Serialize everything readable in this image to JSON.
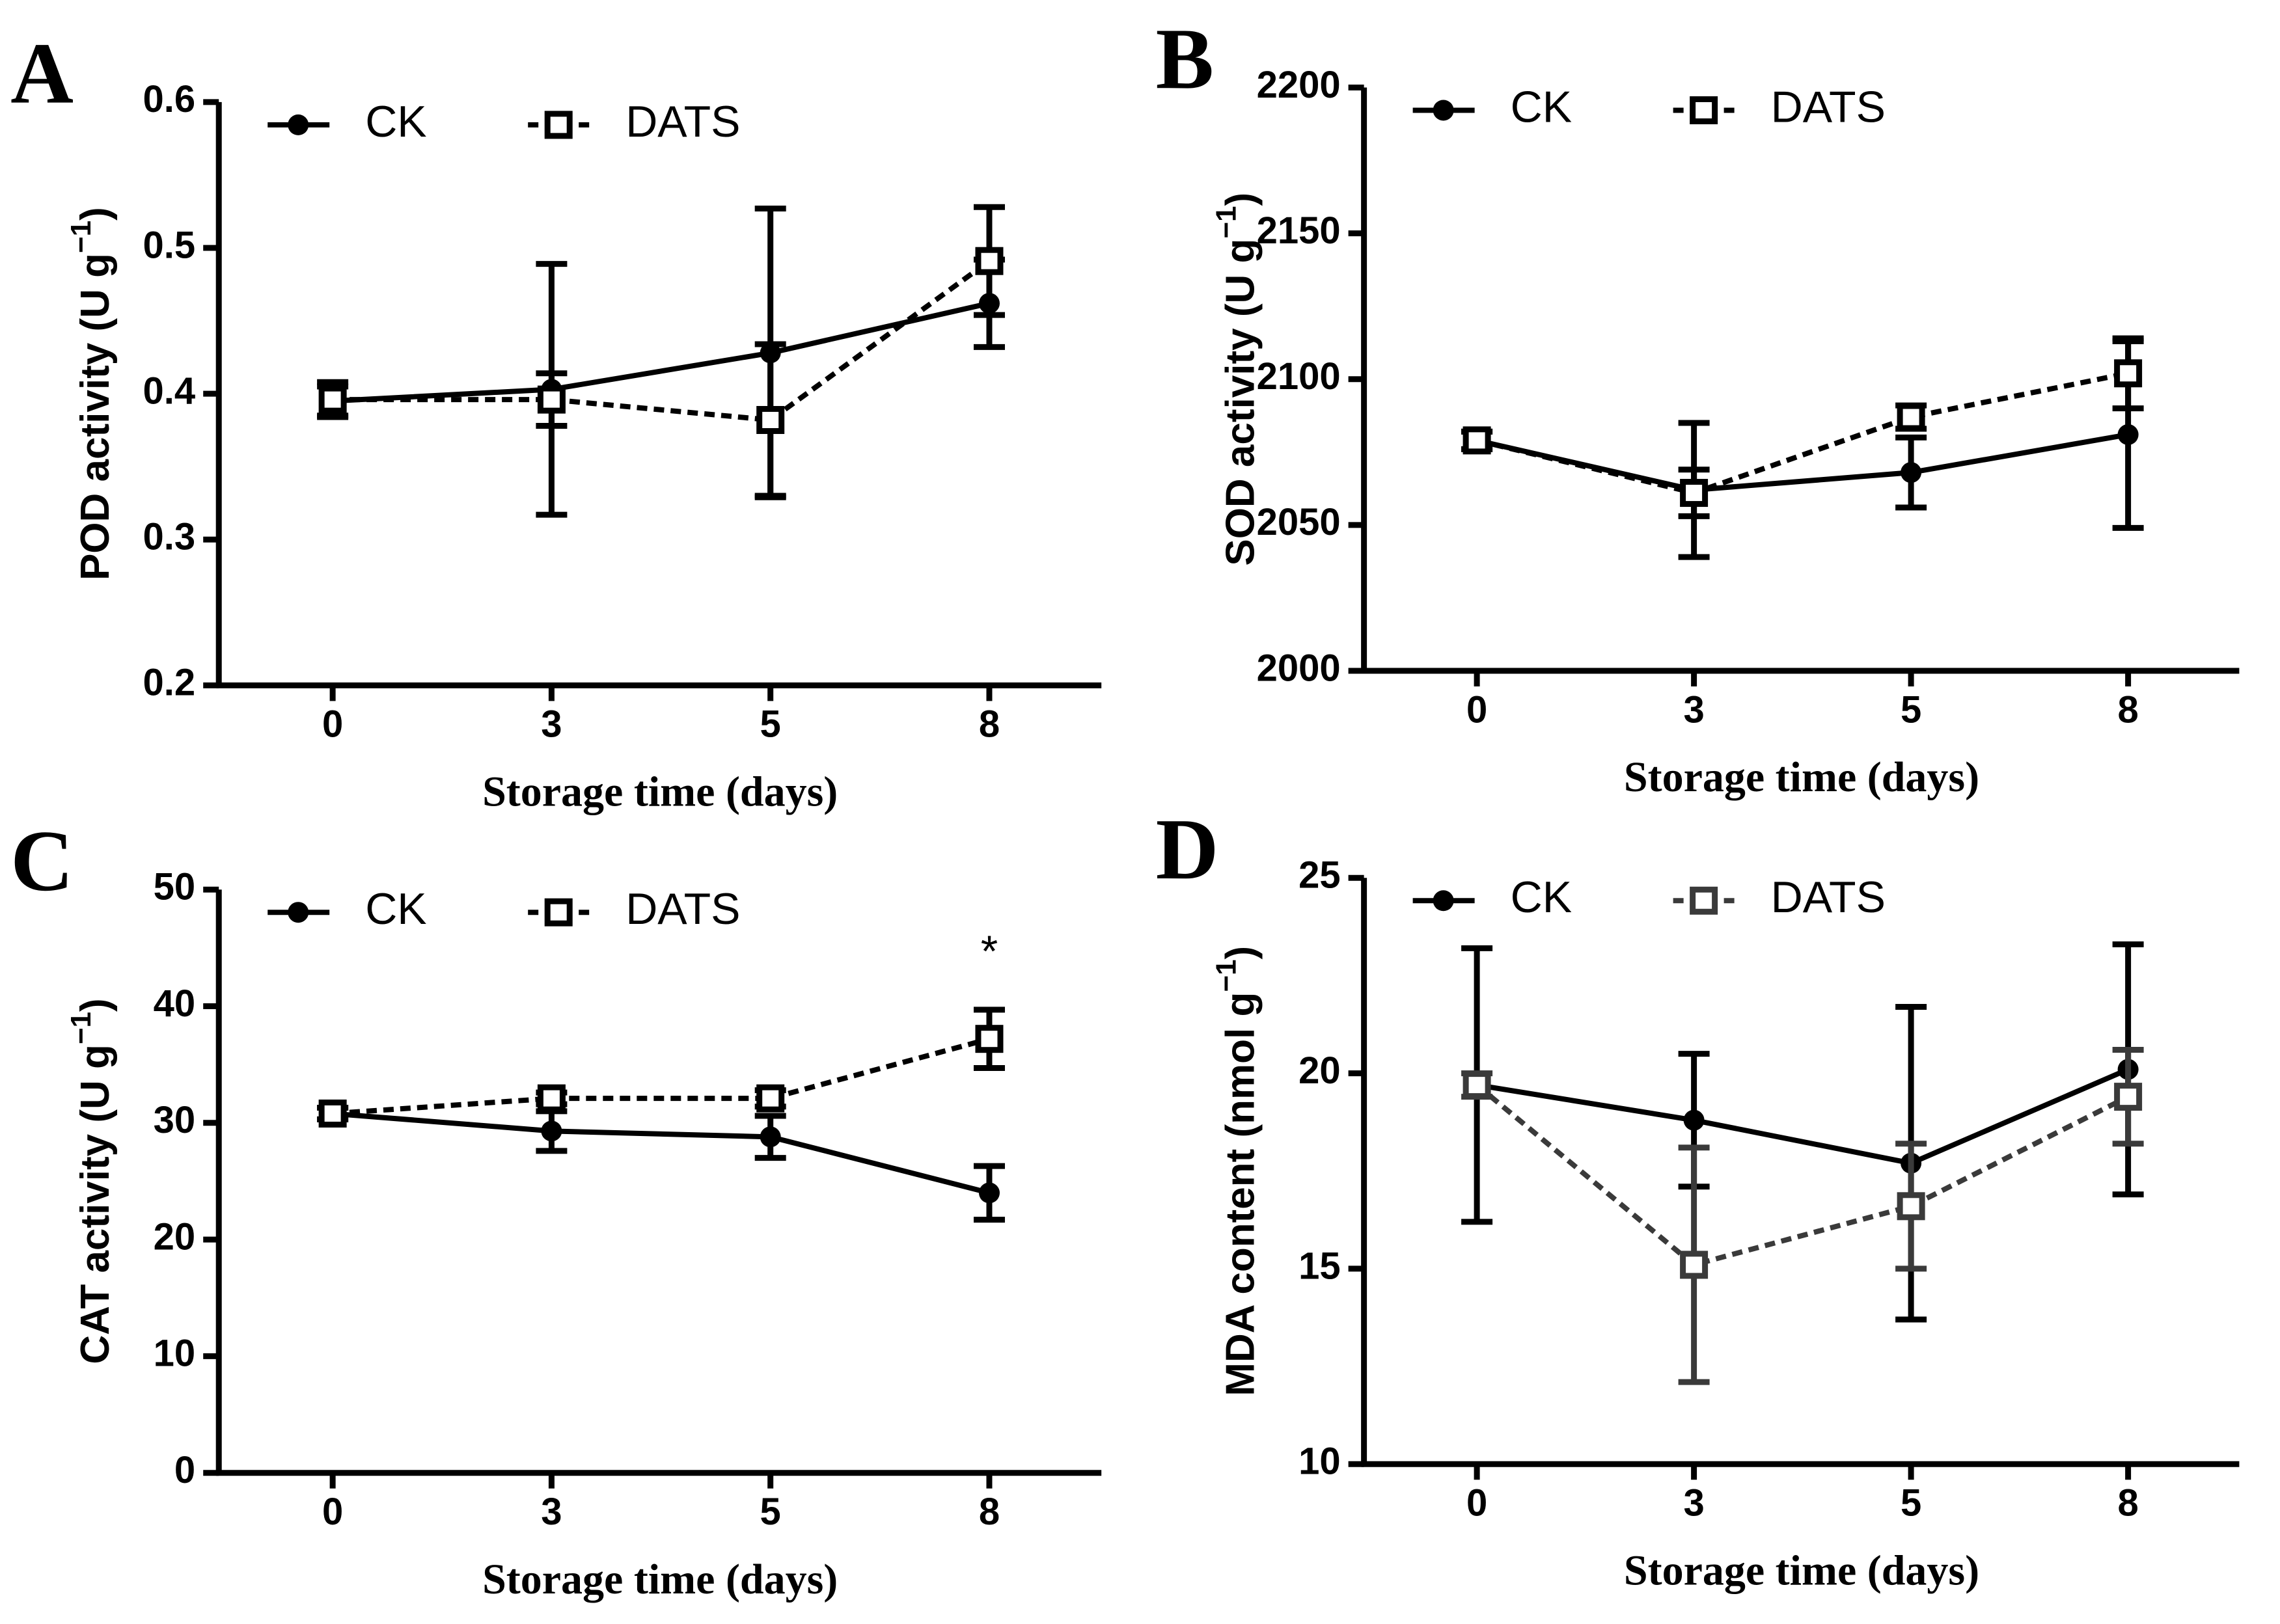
{
  "chart_data": [
    {
      "type": "line",
      "panel": "A",
      "ylabel": {
        "text": "POD activity (U g",
        "sup": "−1",
        "end": ")"
      },
      "xlabel": "Storage time (days)",
      "categories": [
        "0",
        "3",
        "5",
        "8"
      ],
      "ylim": [
        0.2,
        0.6
      ],
      "yticks": [
        0.2,
        0.3,
        0.4,
        0.5,
        0.6
      ],
      "series": [
        {
          "name": "CK",
          "color": "#000000",
          "values": [
            0.395,
            0.403,
            0.428,
            0.462
          ],
          "errors": [
            0.01,
            0.086,
            0.099,
            0.03
          ]
        },
        {
          "name": "DATS",
          "color": "#000000",
          "values": [
            0.396,
            0.396,
            0.382,
            0.491
          ],
          "errors": [
            0.012,
            0.018,
            0.052,
            0.037
          ]
        }
      ]
    },
    {
      "type": "line",
      "panel": "B",
      "ylabel": {
        "text": "SOD activity (U g",
        "sup": "−1",
        "end": ")"
      },
      "xlabel": "Storage time (days)",
      "categories": [
        "0",
        "3",
        "5",
        "8"
      ],
      "ylim": [
        2000,
        2200
      ],
      "yticks": [
        2000,
        2050,
        2100,
        2150,
        2200
      ],
      "series": [
        {
          "name": "CK",
          "color": "#000000",
          "values": [
            2079,
            2062,
            2068,
            2081
          ],
          "errors": [
            3,
            23,
            12,
            32
          ]
        },
        {
          "name": "DATS",
          "color": "#000000",
          "values": [
            2079,
            2061,
            2087,
            2102
          ],
          "errors": [
            3,
            8,
            4,
            12
          ]
        }
      ]
    },
    {
      "type": "line",
      "panel": "C",
      "ylabel": {
        "text": "CAT activity (U g",
        "sup": "−1",
        "end": ")"
      },
      "xlabel": "Storage time (days)",
      "categories": [
        "0",
        "3",
        "5",
        "8"
      ],
      "ylim": [
        0,
        50
      ],
      "yticks": [
        0,
        10,
        20,
        30,
        40,
        50
      ],
      "annotation": "*",
      "series": [
        {
          "name": "CK",
          "color": "#000000",
          "values": [
            30.8,
            29.3,
            28.8,
            24.0
          ],
          "errors": [
            0.5,
            1.7,
            1.8,
            2.3
          ]
        },
        {
          "name": "DATS",
          "color": "#000000",
          "values": [
            30.8,
            32.1,
            32.1,
            37.2
          ],
          "errors": [
            0.5,
            0.5,
            0.7,
            2.5
          ]
        }
      ]
    },
    {
      "type": "line",
      "panel": "D",
      "ylabel": {
        "text": "MDA content (nmol g",
        "sup": "−1",
        "end": ")"
      },
      "xlabel": "Storage time (days)",
      "categories": [
        "0",
        "3",
        "5",
        "8"
      ],
      "ylim": [
        10,
        25
      ],
      "yticks": [
        10,
        15,
        20,
        25
      ],
      "series": [
        {
          "name": "CK",
          "color": "#000000",
          "values": [
            19.7,
            18.8,
            17.7,
            20.1
          ],
          "errors": [
            3.5,
            1.7,
            4.0,
            3.2
          ]
        },
        {
          "name": "DATS",
          "color": "#3a3a3a",
          "values": [
            19.7,
            15.1,
            16.6,
            19.4
          ],
          "errors": [
            0.3,
            3.0,
            1.6,
            1.2
          ]
        }
      ]
    }
  ]
}
